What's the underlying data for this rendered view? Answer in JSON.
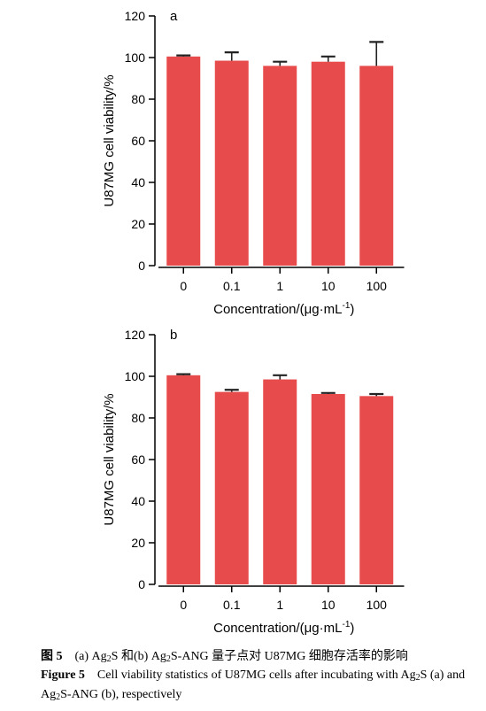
{
  "chart_data": [
    {
      "type": "bar",
      "panel_label": "a",
      "categories": [
        "0",
        "0.1",
        "1",
        "10",
        "100"
      ],
      "values": [
        100.5,
        98.5,
        96,
        98,
        96
      ],
      "errors": [
        0.5,
        4,
        2,
        2.5,
        11.5
      ],
      "ylabel": "U87MG cell viability/%",
      "xlabel": "Concentration/(μg·mL",
      "xlabel_sup": "-1",
      "xlabel_end": ")",
      "ylim": [
        0,
        120
      ],
      "yticks": [
        0,
        20,
        40,
        60,
        80,
        100,
        120
      ],
      "bar_color": "#e84b4b"
    },
    {
      "type": "bar",
      "panel_label": "b",
      "categories": [
        "0",
        "0.1",
        "1",
        "10",
        "100"
      ],
      "values": [
        100.5,
        92.5,
        98.5,
        91.5,
        90.5
      ],
      "errors": [
        0.5,
        1,
        2,
        0.5,
        1
      ],
      "ylabel": "U87MG cell viability/%",
      "xlabel": "Concentration/(μg·mL",
      "xlabel_sup": "-1",
      "xlabel_end": ")",
      "ylim": [
        0,
        120
      ],
      "yticks": [
        0,
        20,
        40,
        60,
        80,
        100,
        120
      ],
      "bar_color": "#e84b4b"
    }
  ],
  "caption": {
    "cn_label": "图 5",
    "cn_parts": [
      "(a) Ag",
      "2",
      "S 和(b) Ag",
      "2",
      "S-ANG 量子点对 U87MG 细胞存活率的影响"
    ],
    "en_label": "Figure 5",
    "en_parts": [
      "Cell viability statistics of U87MG cells after incubating with Ag",
      "2",
      "S (a) and Ag",
      "2",
      "S-ANG (b), respectively"
    ]
  }
}
